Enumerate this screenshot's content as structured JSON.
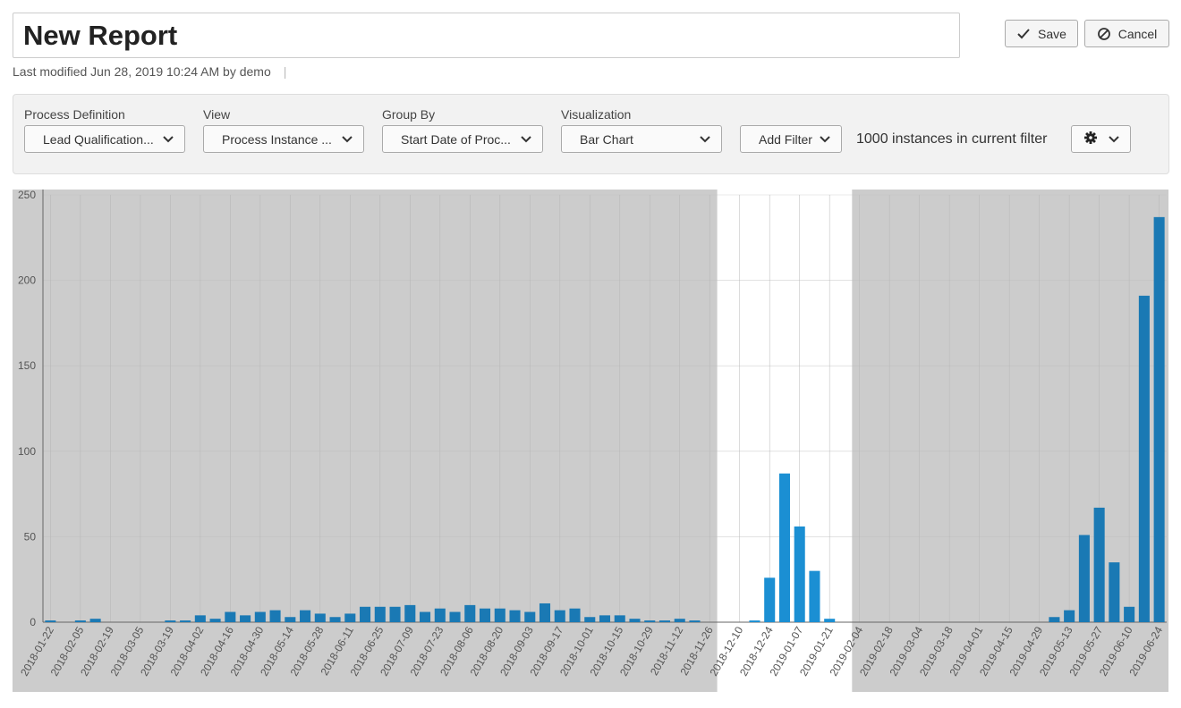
{
  "report": {
    "title": "New Report",
    "last_modified": "Last modified Jun 28, 2019 10:24 AM by demo",
    "separator": "|"
  },
  "toolbar": {
    "save_label": "Save",
    "cancel_label": "Cancel"
  },
  "controls": {
    "process_definition": {
      "label": "Process Definition",
      "value": "Lead Qualification..."
    },
    "view": {
      "label": "View",
      "value": "Process Instance ..."
    },
    "group_by": {
      "label": "Group By",
      "value": "Start Date of Proc..."
    },
    "visualization": {
      "label": "Visualization",
      "value": "Bar Chart"
    },
    "add_filter": "Add Filter",
    "instances_text": "1000 instances in current filter"
  },
  "icons": [
    "check-icon",
    "cancel-icon",
    "chevron-down-icon",
    "gear-icon"
  ],
  "colors": {
    "bar": "#1a79b4",
    "bar_selected": "#1b8fd3",
    "shade": "#cccccc",
    "grid": "#e4e4e4"
  },
  "chart_data": {
    "type": "bar",
    "ylim": [
      0,
      250
    ],
    "yticks": [
      0,
      50,
      100,
      150,
      200,
      250
    ],
    "x_labels": [
      "2018-01-22",
      "2018-02-05",
      "2018-02-19",
      "2018-03-05",
      "2018-03-19",
      "2018-04-02",
      "2018-04-16",
      "2018-04-30",
      "2018-05-14",
      "2018-05-28",
      "2018-06-11",
      "2018-06-25",
      "2018-07-09",
      "2018-07-23",
      "2018-08-06",
      "2018-08-20",
      "2018-09-03",
      "2018-09-17",
      "2018-10-01",
      "2018-10-15",
      "2018-10-29",
      "2018-11-12",
      "2018-11-26",
      "2018-12-10",
      "2018-12-24",
      "2019-01-07",
      "2019-01-21",
      "2019-02-04",
      "2019-02-18",
      "2019-03-04",
      "2019-03-18",
      "2019-04-01",
      "2019-04-15",
      "2019-04-29",
      "2019-05-13",
      "2019-05-27",
      "2019-06-10",
      "2019-06-24"
    ],
    "categories": [
      "2018-01-22",
      "2018-01-29",
      "2018-02-05",
      "2018-02-12",
      "2018-02-19",
      "2018-02-26",
      "2018-03-05",
      "2018-03-12",
      "2018-03-19",
      "2018-03-26",
      "2018-04-02",
      "2018-04-09",
      "2018-04-16",
      "2018-04-23",
      "2018-04-30",
      "2018-05-07",
      "2018-05-14",
      "2018-05-21",
      "2018-05-28",
      "2018-06-04",
      "2018-06-11",
      "2018-06-18",
      "2018-06-25",
      "2018-07-02",
      "2018-07-09",
      "2018-07-16",
      "2018-07-23",
      "2018-07-30",
      "2018-08-06",
      "2018-08-13",
      "2018-08-20",
      "2018-08-27",
      "2018-09-03",
      "2018-09-10",
      "2018-09-17",
      "2018-09-24",
      "2018-10-01",
      "2018-10-08",
      "2018-10-15",
      "2018-10-22",
      "2018-10-29",
      "2018-11-05",
      "2018-11-12",
      "2018-11-19",
      "2018-11-26",
      "2018-12-03",
      "2018-12-10",
      "2018-12-17",
      "2018-12-24",
      "2018-12-31",
      "2019-01-07",
      "2019-01-14",
      "2019-01-21",
      "2019-01-28",
      "2019-02-04",
      "2019-02-11",
      "2019-02-18",
      "2019-02-25",
      "2019-03-04",
      "2019-03-11",
      "2019-03-18",
      "2019-03-25",
      "2019-04-01",
      "2019-04-08",
      "2019-04-15",
      "2019-04-22",
      "2019-04-29",
      "2019-05-06",
      "2019-05-13",
      "2019-05-20",
      "2019-05-27",
      "2019-06-03",
      "2019-06-10",
      "2019-06-17",
      "2019-06-24"
    ],
    "values": [
      1,
      0,
      1,
      2,
      0,
      0,
      0,
      0,
      1,
      1,
      4,
      2,
      6,
      4,
      6,
      7,
      3,
      7,
      5,
      3,
      5,
      9,
      9,
      9,
      10,
      6,
      8,
      6,
      10,
      8,
      8,
      7,
      6,
      11,
      7,
      8,
      3,
      4,
      4,
      2,
      1,
      1,
      2,
      1,
      0,
      0,
      0,
      1,
      26,
      87,
      56,
      30,
      2,
      0,
      0,
      0,
      0,
      0,
      0,
      0,
      0,
      0,
      0,
      0,
      0,
      0,
      0,
      3,
      7,
      51,
      67,
      35,
      9,
      191,
      237
    ],
    "selected_range": [
      "2018-12-03",
      "2019-01-28"
    ]
  }
}
